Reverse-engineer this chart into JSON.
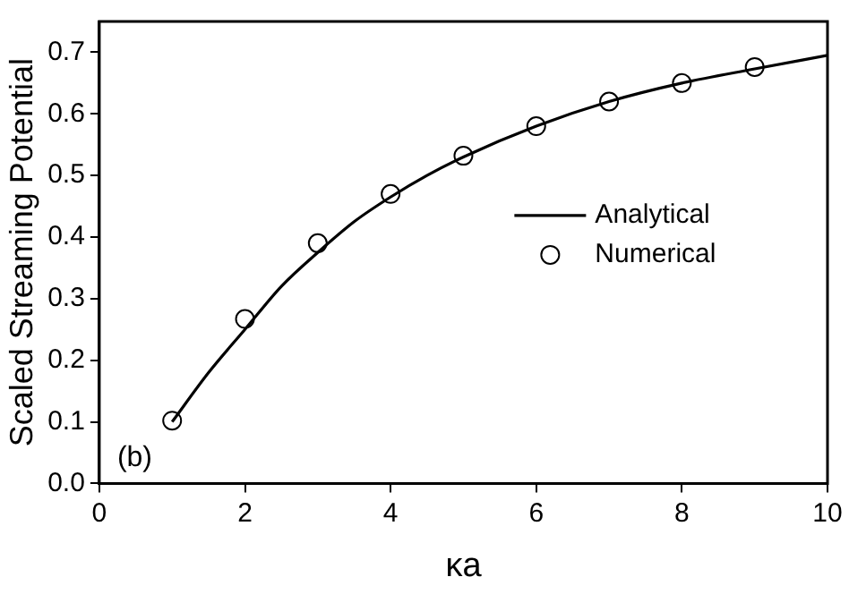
{
  "chart_data": {
    "type": "line",
    "xlabel": "κa",
    "ylabel": "Scaled Streaming Potential",
    "xlim": [
      0,
      10
    ],
    "xticks": [
      0,
      2,
      4,
      6,
      8,
      10
    ],
    "ylim": [
      0,
      0.75
    ],
    "yticks": [
      {
        "value": 0,
        "label": "0.0"
      },
      0.1,
      0.2,
      0.3,
      0.4,
      0.5,
      0.6,
      0.7
    ],
    "legend": "right",
    "annotations": [
      "(b)"
    ],
    "series": [
      {
        "name": "Analytical",
        "color": "#000000",
        "marker": "none",
        "x": [
          1,
          1.5,
          2,
          2.5,
          3,
          3.5,
          4,
          4.5,
          5,
          6,
          7,
          8,
          9,
          10
        ],
        "values": [
          0.1,
          0.18,
          0.25,
          0.32,
          0.375,
          0.425,
          0.465,
          0.5,
          0.53,
          0.58,
          0.62,
          0.65,
          0.673,
          0.695
        ]
      },
      {
        "name": "Numerical",
        "type": "scatter",
        "color": "#000000",
        "marker": "circle",
        "x": [
          1,
          2,
          3,
          4,
          5,
          6,
          7,
          8,
          9
        ],
        "values": [
          0.102,
          0.267,
          0.39,
          0.47,
          0.532,
          0.58,
          0.62,
          0.65,
          0.676
        ]
      }
    ]
  }
}
